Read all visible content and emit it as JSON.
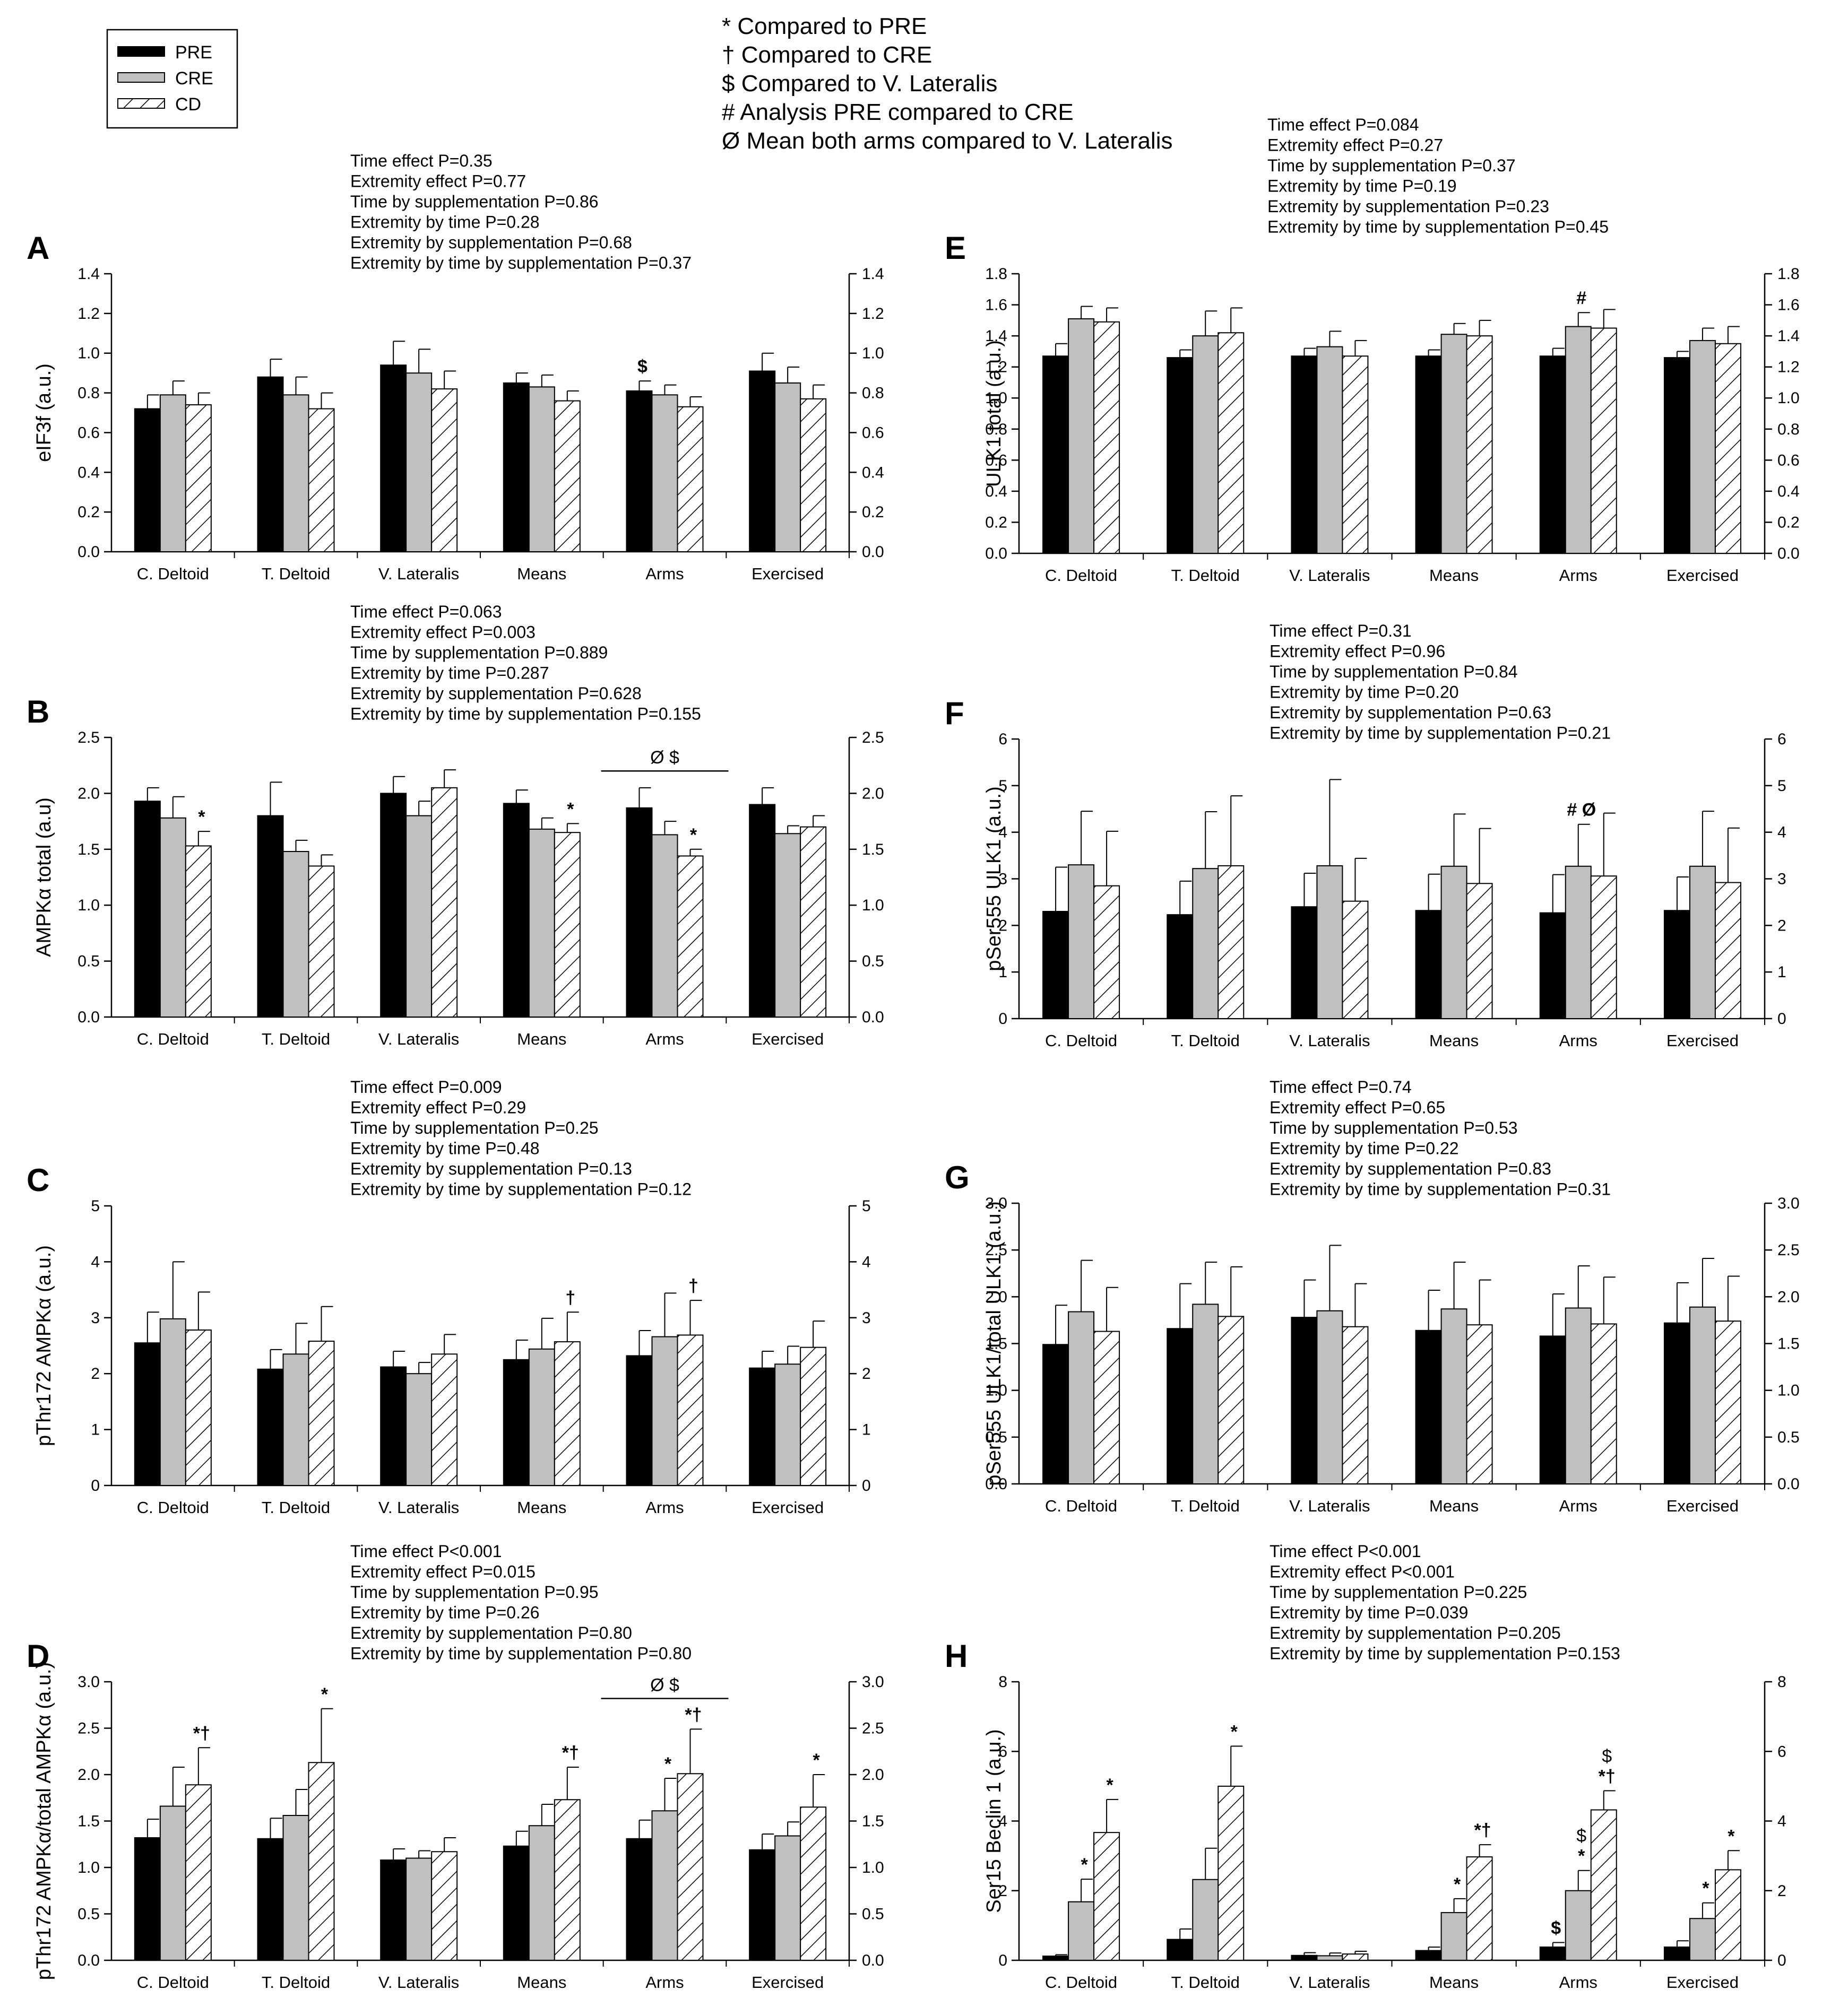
{
  "colors": {
    "pre": "#000000",
    "cre": "#c0c0c0",
    "cd_stroke": "#000000",
    "cd_fill": "#ffffff",
    "axis": "#000000"
  },
  "legend": [
    {
      "label": "PRE",
      "key": "pre"
    },
    {
      "label": "CRE",
      "key": "cre"
    },
    {
      "label": "CD",
      "key": "cd"
    }
  ],
  "notes": [
    "* Compared to PRE",
    "† Compared to CRE",
    "$ Compared to V. Lateralis",
    "# Analysis PRE compared to CRE",
    "Ø Mean both arms compared to V. Lateralis"
  ],
  "chart_data": [
    {
      "id": "A",
      "type": "bar",
      "panel_label": "A",
      "ylabel": "eIF3f (a.u.)",
      "ylim": [
        0,
        1.4
      ],
      "yticks": [
        0.0,
        0.2,
        0.4,
        0.6,
        0.8,
        1.0,
        1.2,
        1.4
      ],
      "ytick_labels": [
        "0.0",
        "0.2",
        "0.4",
        "0.6",
        "0.8",
        "1.0",
        "1.2",
        "1.4"
      ],
      "categories": [
        "C. Deltoid",
        "T. Deltoid",
        "V. Lateralis",
        "Means",
        "Arms",
        "Exercised"
      ],
      "series": [
        {
          "name": "PRE",
          "values": [
            0.72,
            0.88,
            0.94,
            0.85,
            0.81,
            0.91
          ],
          "errors": [
            0.07,
            0.09,
            0.12,
            0.05,
            0.05,
            0.09
          ]
        },
        {
          "name": "CRE",
          "values": [
            0.79,
            0.79,
            0.9,
            0.83,
            0.79,
            0.85
          ],
          "errors": [
            0.07,
            0.09,
            0.12,
            0.06,
            0.05,
            0.08
          ]
        },
        {
          "name": "CD",
          "values": [
            0.74,
            0.72,
            0.82,
            0.76,
            0.73,
            0.77
          ],
          "errors": [
            0.06,
            0.08,
            0.09,
            0.05,
            0.05,
            0.07
          ]
        }
      ],
      "annotations": [
        {
          "category": 4,
          "series": 0,
          "text": "$"
        }
      ],
      "brackets": [],
      "stats": [
        "Time effect P=0.35",
        "Extremity effect P=0.77",
        "Time by supplementation P=0.86",
        "Extremity by time P=0.28",
        "Extremity by supplementation P=0.68",
        "Extremity by time by supplementation P=0.37"
      ]
    },
    {
      "id": "B",
      "type": "bar",
      "panel_label": "B",
      "ylabel": "AMPKα total (a.u)",
      "ylim": [
        0,
        2.5
      ],
      "yticks": [
        0.0,
        0.5,
        1.0,
        1.5,
        2.0,
        2.5
      ],
      "ytick_labels": [
        "0.0",
        "0.5",
        "1.0",
        "1.5",
        "2.0",
        "2.5"
      ],
      "categories": [
        "C. Deltoid",
        "T. Deltoid",
        "V. Lateralis",
        "Means",
        "Arms",
        "Exercised"
      ],
      "series": [
        {
          "name": "PRE",
          "values": [
            1.93,
            1.8,
            2.0,
            1.91,
            1.87,
            1.9
          ],
          "errors": [
            0.12,
            0.3,
            0.15,
            0.12,
            0.18,
            0.15
          ]
        },
        {
          "name": "CRE",
          "values": [
            1.78,
            1.48,
            1.8,
            1.68,
            1.63,
            1.64
          ],
          "errors": [
            0.19,
            0.1,
            0.13,
            0.1,
            0.12,
            0.07
          ]
        },
        {
          "name": "CD",
          "values": [
            1.53,
            1.35,
            2.05,
            1.65,
            1.44,
            1.7
          ],
          "errors": [
            0.13,
            0.1,
            0.16,
            0.08,
            0.06,
            0.1
          ]
        }
      ],
      "annotations": [
        {
          "category": 0,
          "series": 2,
          "text": "*"
        },
        {
          "category": 3,
          "series": 2,
          "text": "*"
        },
        {
          "category": 4,
          "series": 2,
          "text": "*"
        }
      ],
      "brackets": [
        {
          "category": 4,
          "text": "Ø  $",
          "value": 2.2
        }
      ],
      "stats": [
        "Time effect P=0.063",
        "Extremity effect P=0.003",
        "Time by supplementation P=0.889",
        "Extremity by time P=0.287",
        "Extremity by supplementation P=0.628",
        "Extremity by time by supplementation P=0.155"
      ]
    },
    {
      "id": "C",
      "type": "bar",
      "panel_label": "C",
      "ylabel": "pThr172 AMPKα (a.u.)",
      "ylim": [
        0,
        5
      ],
      "yticks": [
        0,
        1,
        2,
        3,
        4,
        5
      ],
      "ytick_labels": [
        "0",
        "1",
        "2",
        "3",
        "4",
        "5"
      ],
      "categories": [
        "C. Deltoid",
        "T. Deltoid",
        "V. Lateralis",
        "Means",
        "Arms",
        "Exercised"
      ],
      "series": [
        {
          "name": "PRE",
          "values": [
            2.55,
            2.08,
            2.12,
            2.25,
            2.32,
            2.1
          ],
          "errors": [
            0.55,
            0.35,
            0.28,
            0.35,
            0.45,
            0.3
          ]
        },
        {
          "name": "CRE",
          "values": [
            2.98,
            2.35,
            2.0,
            2.44,
            2.66,
            2.17
          ],
          "errors": [
            1.02,
            0.55,
            0.2,
            0.55,
            0.78,
            0.32
          ]
        },
        {
          "name": "CD",
          "values": [
            2.78,
            2.58,
            2.35,
            2.57,
            2.69,
            2.47
          ],
          "errors": [
            0.68,
            0.62,
            0.35,
            0.53,
            0.62,
            0.47
          ]
        }
      ],
      "annotations": [
        {
          "category": 3,
          "series": 2,
          "text": "†"
        },
        {
          "category": 4,
          "series": 2,
          "text": "†"
        }
      ],
      "brackets": [],
      "stats": [
        "Time effect P=0.009",
        "Extremity effect P=0.29",
        "Time by supplementation P=0.25",
        "Extremity by time P=0.48",
        "Extremity by supplementation P=0.13",
        "Extremity by time by supplementation P=0.12"
      ]
    },
    {
      "id": "D",
      "type": "bar",
      "panel_label": "D",
      "ylabel": "pThr172 AMPKα/total AMPKα (a.u.)",
      "ylim": [
        0,
        3.0
      ],
      "yticks": [
        0.0,
        0.5,
        1.0,
        1.5,
        2.0,
        2.5,
        3.0
      ],
      "ytick_labels": [
        "0.0",
        "0.5",
        "1.0",
        "1.5",
        "2.0",
        "2.5",
        "3.0"
      ],
      "categories": [
        "C. Deltoid",
        "T. Deltoid",
        "V. Lateralis",
        "Means",
        "Arms",
        "Exercised"
      ],
      "series": [
        {
          "name": "PRE",
          "values": [
            1.32,
            1.31,
            1.08,
            1.23,
            1.31,
            1.19
          ],
          "errors": [
            0.2,
            0.22,
            0.12,
            0.16,
            0.2,
            0.17
          ]
        },
        {
          "name": "CRE",
          "values": [
            1.66,
            1.56,
            1.1,
            1.45,
            1.61,
            1.34
          ],
          "errors": [
            0.42,
            0.28,
            0.08,
            0.23,
            0.35,
            0.15
          ]
        },
        {
          "name": "CD",
          "values": [
            1.89,
            2.13,
            1.17,
            1.73,
            2.01,
            1.65
          ],
          "errors": [
            0.4,
            0.58,
            0.15,
            0.35,
            0.48,
            0.35
          ]
        }
      ],
      "annotations": [
        {
          "category": 0,
          "series": 2,
          "text": "*†"
        },
        {
          "category": 1,
          "series": 2,
          "text": "*"
        },
        {
          "category": 3,
          "series": 2,
          "text": "*†"
        },
        {
          "category": 4,
          "series": 1,
          "text": "*"
        },
        {
          "category": 4,
          "series": 2,
          "text": "*†"
        },
        {
          "category": 5,
          "series": 2,
          "text": "*"
        }
      ],
      "brackets": [
        {
          "category": 4,
          "text": "Ø  $",
          "value": 2.82
        }
      ],
      "stats": [
        "Time effect P<0.001",
        "Extremity effect P=0.015",
        "Time by supplementation P=0.95",
        "Extremity by time P=0.26",
        "Extremity by supplementation P=0.80",
        "Extremity by time by supplementation P=0.80"
      ]
    },
    {
      "id": "E",
      "type": "bar",
      "panel_label": "E",
      "ylabel": "ULK1 total (a.u.)",
      "ylim": [
        0,
        1.8
      ],
      "yticks": [
        0.0,
        0.2,
        0.4,
        0.6,
        0.8,
        1.0,
        1.2,
        1.4,
        1.6,
        1.8
      ],
      "ytick_labels": [
        "0.0",
        "0.2",
        "0.4",
        "0.6",
        "0.8",
        "1.0",
        "1.2",
        "1.4",
        "1.6",
        "1.8"
      ],
      "categories": [
        "C. Deltoid",
        "T. Deltoid",
        "V. Lateralis",
        "Means",
        "Arms",
        "Exercised"
      ],
      "series": [
        {
          "name": "PRE",
          "values": [
            1.27,
            1.26,
            1.27,
            1.27,
            1.27,
            1.26
          ],
          "errors": [
            0.08,
            0.05,
            0.05,
            0.04,
            0.05,
            0.04
          ]
        },
        {
          "name": "CRE",
          "values": [
            1.51,
            1.4,
            1.33,
            1.41,
            1.46,
            1.37
          ],
          "errors": [
            0.08,
            0.16,
            0.1,
            0.07,
            0.09,
            0.08
          ]
        },
        {
          "name": "CD",
          "values": [
            1.49,
            1.42,
            1.27,
            1.4,
            1.45,
            1.35
          ],
          "errors": [
            0.09,
            0.16,
            0.1,
            0.1,
            0.12,
            0.11
          ]
        }
      ],
      "annotations": [
        {
          "category": 4,
          "series": 1,
          "text": "#"
        }
      ],
      "brackets": [],
      "stats": [
        "Time effect P=0.084",
        "Extremity effect P=0.27",
        "Time by supplementation P=0.37",
        "Extremity by time P=0.19",
        "Extremity by supplementation P=0.23",
        "Extremity by time by supplementation P=0.45"
      ]
    },
    {
      "id": "F",
      "type": "bar",
      "panel_label": "F",
      "ylabel": "pSer555 ULK1 (a.u.)",
      "ylim": [
        0,
        6
      ],
      "yticks": [
        0,
        1,
        2,
        3,
        4,
        5,
        6
      ],
      "ytick_labels": [
        "0",
        "1",
        "2",
        "3",
        "4",
        "5",
        "6"
      ],
      "categories": [
        "C. Deltoid",
        "T. Deltoid",
        "V. Lateralis",
        "Means",
        "Arms",
        "Exercised"
      ],
      "series": [
        {
          "name": "PRE",
          "values": [
            2.3,
            2.23,
            2.4,
            2.32,
            2.27,
            2.32
          ],
          "errors": [
            0.95,
            0.72,
            0.72,
            0.78,
            0.82,
            0.72
          ]
        },
        {
          "name": "CRE",
          "values": [
            3.3,
            3.22,
            3.28,
            3.27,
            3.27,
            3.27
          ],
          "errors": [
            1.15,
            1.22,
            1.85,
            1.12,
            0.9,
            1.18
          ]
        },
        {
          "name": "CD",
          "values": [
            2.85,
            3.28,
            2.52,
            2.9,
            3.06,
            2.92
          ],
          "errors": [
            1.17,
            1.5,
            0.92,
            1.18,
            1.35,
            1.17
          ]
        }
      ],
      "annotations": [
        {
          "category": 4,
          "series": 1,
          "text": "# Ø"
        }
      ],
      "brackets": [],
      "stats": [
        "Time effect P=0.31",
        "Extremity effect P=0.96",
        "Time by supplementation P=0.84",
        "Extremity by time P=0.20",
        "Extremity by supplementation P=0.63",
        "Extremity by time by supplementation P=0.21"
      ]
    },
    {
      "id": "G",
      "type": "bar",
      "panel_label": "G",
      "ylabel": "pSer555 ULK1/total ULK1 (a.u.)",
      "ylim": [
        0,
        3.0
      ],
      "yticks": [
        0.0,
        0.5,
        1.0,
        1.5,
        2.0,
        2.5,
        3.0
      ],
      "ytick_labels": [
        "0.0",
        "0.5",
        "1.0",
        "1.5",
        "2.0",
        "2.5",
        "3.0"
      ],
      "categories": [
        "C. Deltoid",
        "T. Deltoid",
        "V. Lateralis",
        "Means",
        "Arms",
        "Exercised"
      ],
      "series": [
        {
          "name": "PRE",
          "values": [
            1.49,
            1.66,
            1.78,
            1.64,
            1.58,
            1.72
          ],
          "errors": [
            0.42,
            0.48,
            0.4,
            0.43,
            0.45,
            0.43
          ]
        },
        {
          "name": "CRE",
          "values": [
            1.84,
            1.92,
            1.85,
            1.87,
            1.88,
            1.89
          ],
          "errors": [
            0.55,
            0.45,
            0.7,
            0.5,
            0.45,
            0.52
          ]
        },
        {
          "name": "CD",
          "values": [
            1.63,
            1.79,
            1.68,
            1.7,
            1.71,
            1.74
          ],
          "errors": [
            0.47,
            0.53,
            0.46,
            0.48,
            0.5,
            0.48
          ]
        }
      ],
      "annotations": [],
      "brackets": [],
      "stats": [
        "Time effect P=0.74",
        "Extremity effect P=0.65",
        "Time by supplementation P=0.53",
        "Extremity by time P=0.22",
        "Extremity by supplementation P=0.83",
        "Extremity by time by supplementation P=0.31"
      ]
    },
    {
      "id": "H",
      "type": "bar",
      "panel_label": "H",
      "ylabel": "Ser15 Beclin 1 (a.u.)",
      "ylim": [
        0,
        8
      ],
      "yticks": [
        0,
        2,
        4,
        6,
        8
      ],
      "ytick_labels": [
        "0",
        "2",
        "4",
        "6",
        "8"
      ],
      "categories": [
        "C. Deltoid",
        "T. Deltoid",
        "V. Lateralis",
        "Means",
        "Arms",
        "Exercised"
      ],
      "series": [
        {
          "name": "PRE",
          "values": [
            0.12,
            0.6,
            0.14,
            0.28,
            0.38,
            0.38
          ],
          "errors": [
            0.04,
            0.3,
            0.08,
            0.1,
            0.13,
            0.18
          ]
        },
        {
          "name": "CRE",
          "values": [
            1.68,
            2.32,
            0.13,
            1.37,
            2.0,
            1.2
          ],
          "errors": [
            0.65,
            0.9,
            0.08,
            0.4,
            0.58,
            0.45
          ]
        },
        {
          "name": "CD",
          "values": [
            3.67,
            5.0,
            0.18,
            2.97,
            4.32,
            2.6
          ],
          "errors": [
            0.95,
            1.15,
            0.08,
            0.35,
            0.55,
            0.55
          ]
        }
      ],
      "annotations": [
        {
          "category": 0,
          "series": 1,
          "text": "*"
        },
        {
          "category": 0,
          "series": 2,
          "text": "*"
        },
        {
          "category": 1,
          "series": 2,
          "text": "*"
        },
        {
          "category": 3,
          "series": 1,
          "text": "*"
        },
        {
          "category": 3,
          "series": 2,
          "text": "*†"
        },
        {
          "category": 4,
          "series": 0,
          "text": "$"
        },
        {
          "category": 4,
          "series": 1,
          "text": "*",
          "above": "$"
        },
        {
          "category": 4,
          "series": 2,
          "text": "*†",
          "above": "$"
        },
        {
          "category": 5,
          "series": 1,
          "text": "*"
        },
        {
          "category": 5,
          "series": 2,
          "text": "*"
        }
      ],
      "brackets": [],
      "stats": [
        "Time effect P<0.001",
        "Extremity effect P<0.001",
        "Time by supplementation P=0.225",
        "Extremity by time P=0.039",
        "Extremity by supplementation P=0.205",
        "Extremity by time by supplementation P=0.153"
      ]
    }
  ]
}
